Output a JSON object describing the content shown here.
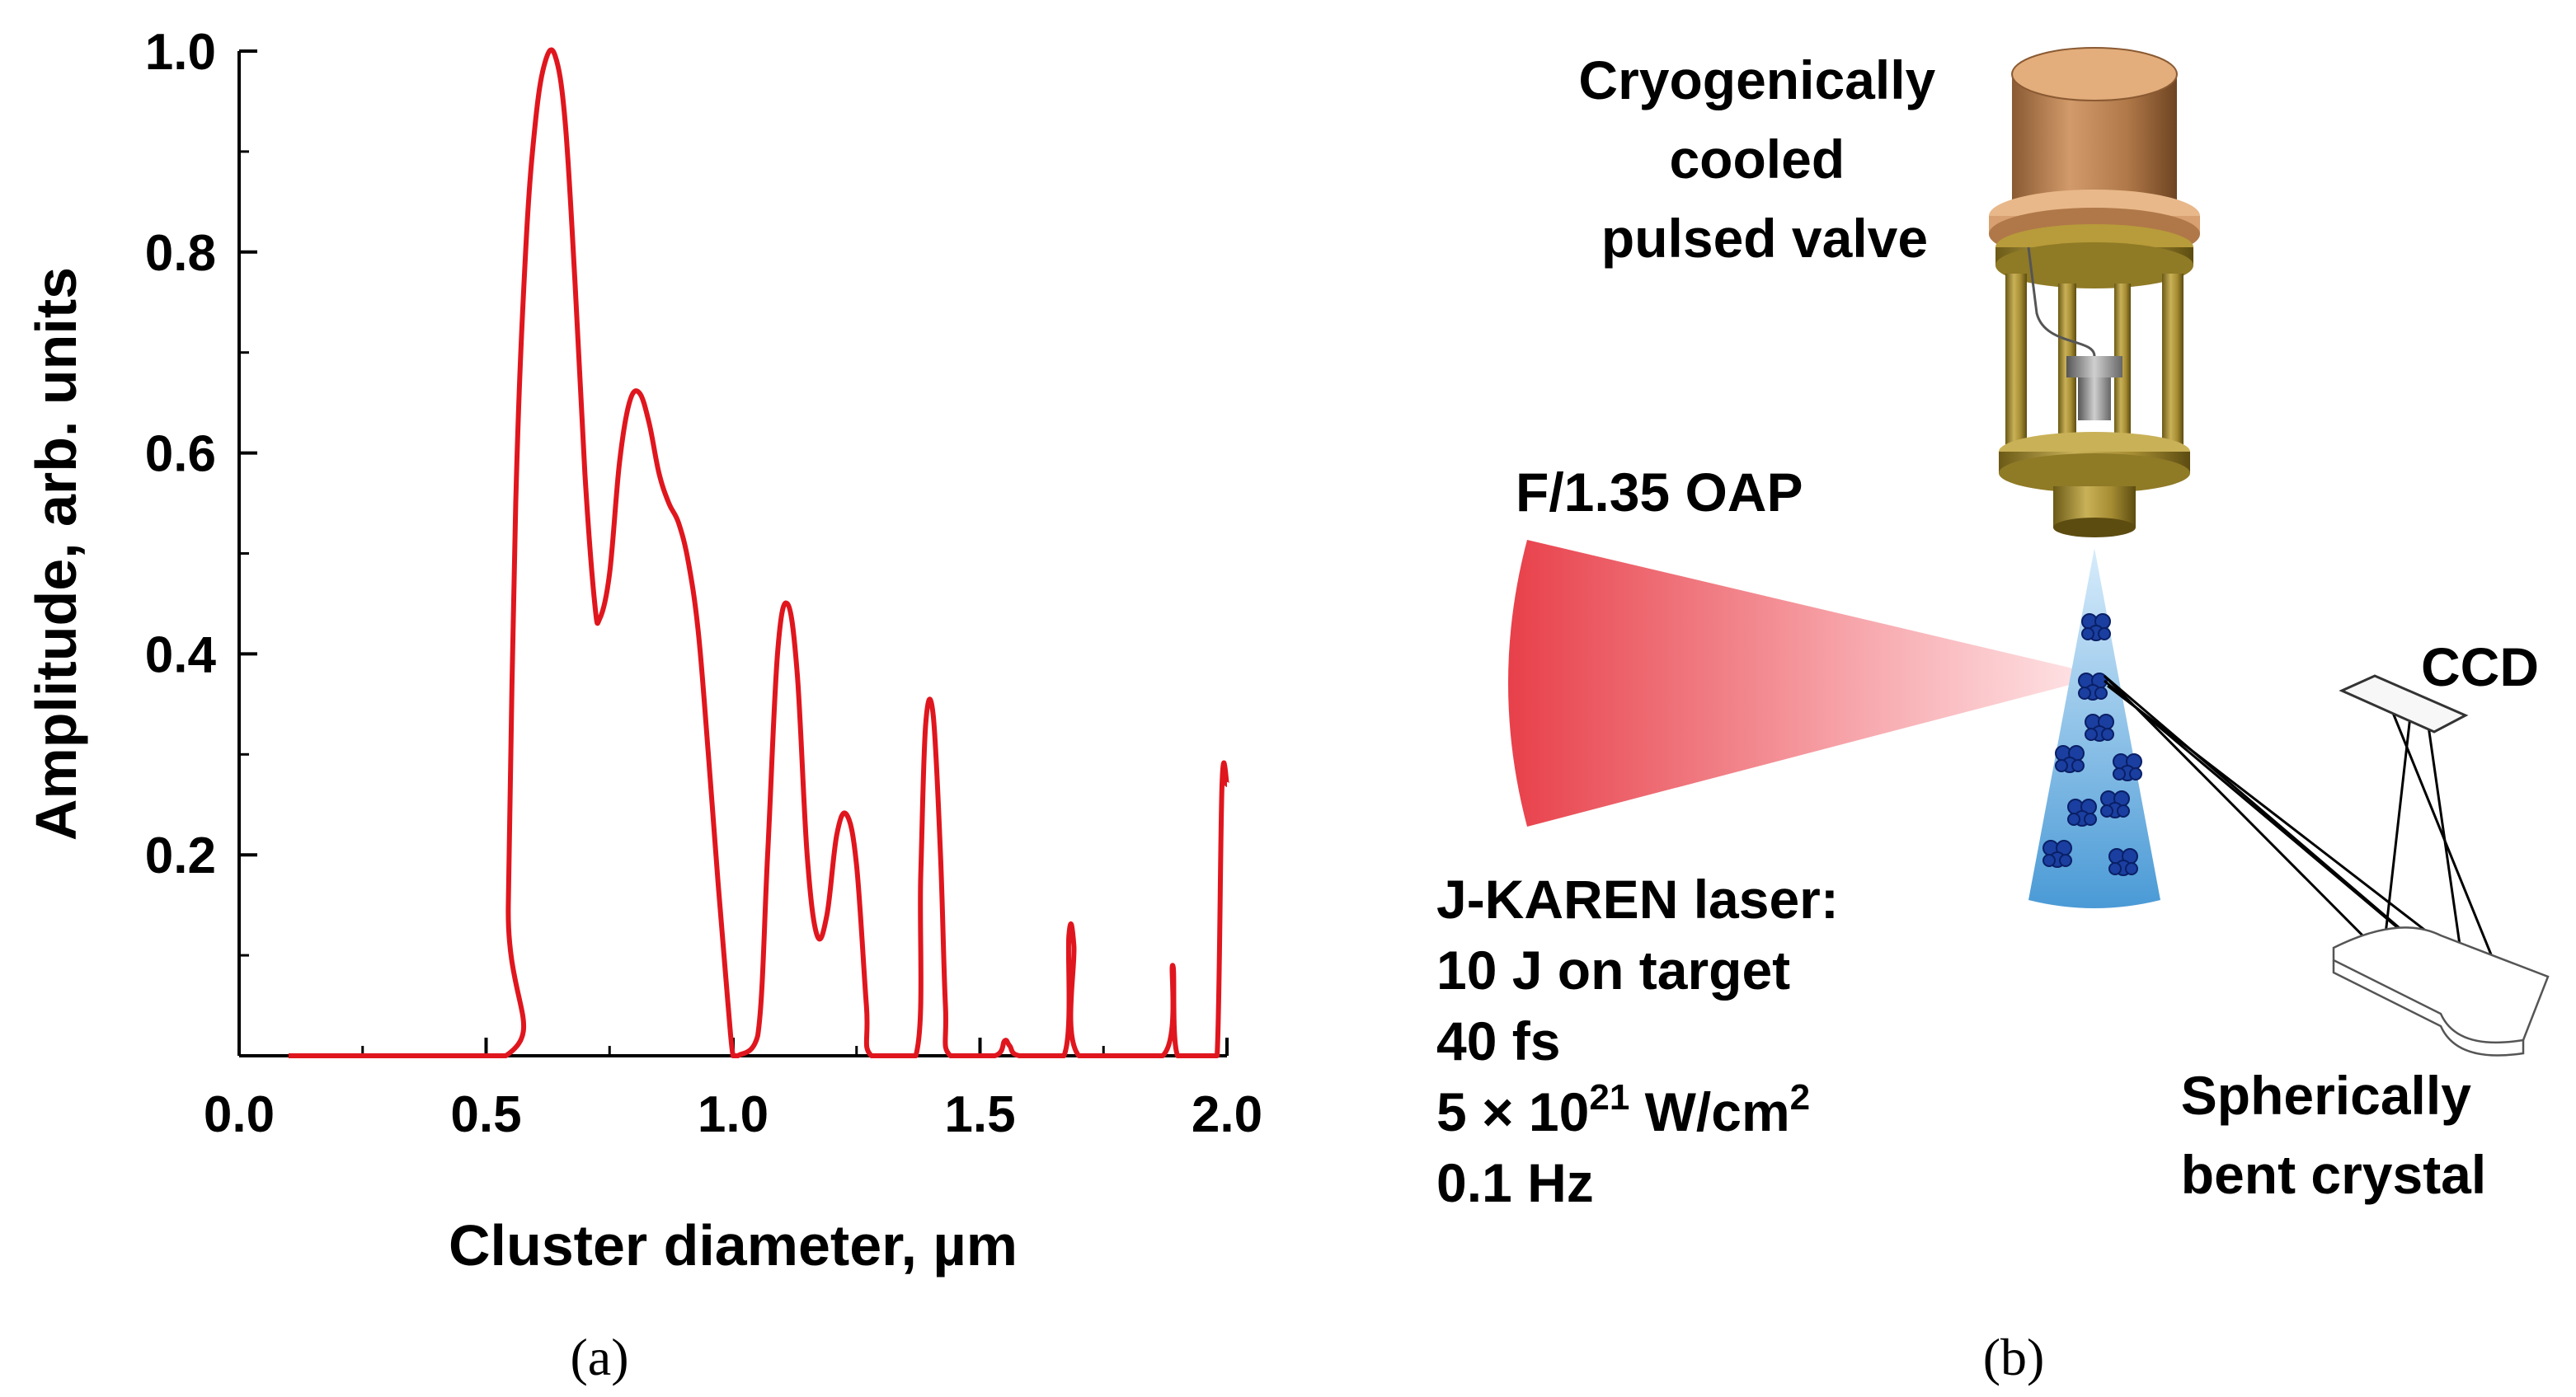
{
  "chart_data": {
    "type": "line",
    "title": "",
    "xlabel": "Cluster diameter, µm",
    "ylabel": "Amplitude, arb. units",
    "xlim": [
      0.0,
      2.0
    ],
    "ylim": [
      0.0,
      1.0
    ],
    "x_ticks": [
      "0.0",
      "0.5",
      "1.0",
      "1.5",
      "2.0"
    ],
    "y_ticks": [
      "0.2",
      "0.4",
      "0.6",
      "0.8",
      "1.0"
    ],
    "line_color": "#e0161e",
    "series": [
      {
        "x": [
          0.1,
          0.54,
          0.545,
          0.56,
          0.58,
          0.6,
          0.62,
          0.64,
          0.66,
          0.68,
          0.7,
          0.72,
          0.73,
          0.75,
          0.77,
          0.79,
          0.81,
          0.83,
          0.85,
          0.87,
          0.89,
          0.91,
          0.93,
          0.95,
          0.97,
          0.99,
          1.0,
          1.01,
          1.05,
          1.07,
          1.09,
          1.11,
          1.13,
          1.15,
          1.17,
          1.19,
          1.21,
          1.23,
          1.25,
          1.27,
          1.28,
          1.37,
          1.38,
          1.39,
          1.405,
          1.42,
          1.43,
          1.44,
          1.53,
          1.55,
          1.56,
          1.58,
          1.67,
          1.68,
          1.69,
          1.7,
          1.87,
          1.89,
          1.9,
          1.96,
          1.98,
          1.99,
          2.0
        ],
        "y": [
          0.0,
          0.0,
          0.15,
          0.55,
          0.8,
          0.93,
          0.99,
          0.995,
          0.93,
          0.77,
          0.58,
          0.45,
          0.435,
          0.48,
          0.59,
          0.65,
          0.66,
          0.63,
          0.58,
          0.55,
          0.53,
          0.49,
          0.42,
          0.3,
          0.17,
          0.05,
          0.0,
          0.0,
          0.02,
          0.2,
          0.4,
          0.45,
          0.38,
          0.2,
          0.12,
          0.14,
          0.22,
          0.24,
          0.19,
          0.05,
          0.0,
          0.0,
          0.18,
          0.33,
          0.34,
          0.2,
          0.05,
          0.0,
          0.0,
          0.015,
          0.01,
          0.0,
          0.0,
          0.12,
          0.11,
          0.0,
          0.0,
          0.09,
          0.0,
          0.0,
          0.0,
          0.27,
          0.27
        ]
      }
    ]
  },
  "panel_a_label": "(a)",
  "panel_b_label": "(b)",
  "diagram": {
    "valve_label": [
      "Cryogenically",
      "cooled",
      "pulsed valve"
    ],
    "oap_label": "F/1.35 OAP",
    "ccd_label": "CCD",
    "crystal_label": [
      "Spherically",
      "bent crystal"
    ],
    "laser_lines": [
      "J-KAREN laser:",
      "10 J on target",
      "40 fs"
    ],
    "intensity_base": "5 × 10",
    "intensity_exp": "21",
    "intensity_unit": " W/cm",
    "intensity_unit_exp": "2",
    "rate": "0.1 Hz"
  }
}
